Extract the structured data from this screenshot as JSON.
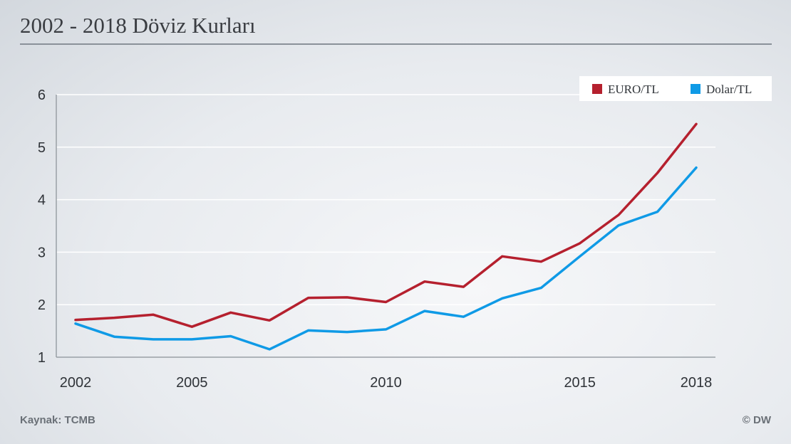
{
  "header": {
    "title": "2002 - 2018 Döviz Kurları"
  },
  "footer": {
    "source": "Kaynak: TCMB",
    "copyright": "© DW"
  },
  "chart_data": {
    "type": "line",
    "title": "2002 - 2018 Döviz Kurları",
    "x": [
      2002,
      2003,
      2004,
      2005,
      2006,
      2007,
      2008,
      2009,
      2010,
      2011,
      2012,
      2013,
      2014,
      2015,
      2016,
      2017,
      2018
    ],
    "x_ticks": [
      2002,
      2005,
      2010,
      2015,
      2018
    ],
    "y_ticks": [
      1,
      2,
      3,
      4,
      5,
      6
    ],
    "ylim": [
      1,
      6
    ],
    "xlim": [
      2002,
      2018
    ],
    "grid": "horizontal",
    "legend_position": "top-right",
    "series": [
      {
        "name": "EURO/TL",
        "color": "#b5202e",
        "values": [
          1.71,
          1.75,
          1.81,
          1.58,
          1.85,
          1.7,
          2.13,
          2.14,
          2.05,
          2.44,
          2.34,
          2.92,
          2.82,
          3.17,
          3.71,
          4.51,
          5.44
        ]
      },
      {
        "name": "Dolar/TL",
        "color": "#0f9ae6",
        "values": [
          1.64,
          1.39,
          1.34,
          1.34,
          1.4,
          1.15,
          1.51,
          1.48,
          1.53,
          1.88,
          1.77,
          2.12,
          2.32,
          2.92,
          3.51,
          3.77,
          4.61
        ]
      }
    ]
  }
}
